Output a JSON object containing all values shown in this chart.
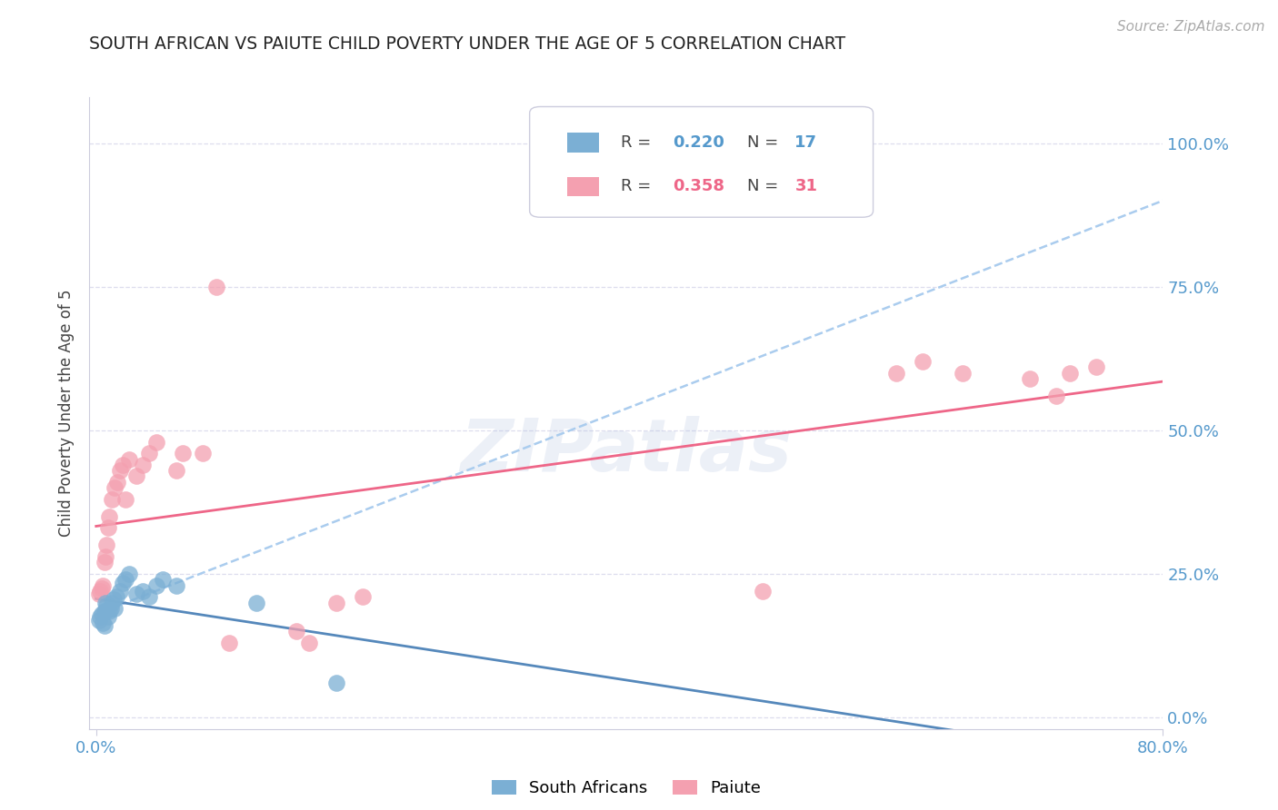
{
  "title": "SOUTH AFRICAN VS PAIUTE CHILD POVERTY UNDER THE AGE OF 5 CORRELATION CHART",
  "source": "Source: ZipAtlas.com",
  "ylabel": "Child Poverty Under the Age of 5",
  "ytick_labels": [
    "0.0%",
    "25.0%",
    "50.0%",
    "75.0%",
    "100.0%"
  ],
  "ytick_values": [
    0.0,
    0.25,
    0.5,
    0.75,
    1.0
  ],
  "xmin": -0.005,
  "xmax": 0.8,
  "ymin": -0.02,
  "ymax": 1.08,
  "watermark": "ZIPatlas",
  "south_african_x": [
    0.002,
    0.003,
    0.004,
    0.005,
    0.006,
    0.006,
    0.007,
    0.007,
    0.008,
    0.009,
    0.01,
    0.011,
    0.012,
    0.013,
    0.014,
    0.015,
    0.018,
    0.02,
    0.022,
    0.025,
    0.03,
    0.035,
    0.04,
    0.045,
    0.05,
    0.06,
    0.12,
    0.18
  ],
  "south_african_y": [
    0.17,
    0.175,
    0.18,
    0.165,
    0.16,
    0.185,
    0.185,
    0.2,
    0.195,
    0.175,
    0.185,
    0.19,
    0.2,
    0.205,
    0.19,
    0.21,
    0.22,
    0.235,
    0.24,
    0.25,
    0.215,
    0.22,
    0.21,
    0.23,
    0.24,
    0.23,
    0.2,
    0.06
  ],
  "paiute_x": [
    0.002,
    0.003,
    0.004,
    0.005,
    0.006,
    0.007,
    0.008,
    0.009,
    0.01,
    0.012,
    0.014,
    0.016,
    0.018,
    0.02,
    0.022,
    0.025,
    0.03,
    0.035,
    0.04,
    0.045,
    0.06,
    0.065,
    0.08,
    0.09,
    0.1,
    0.15,
    0.16,
    0.18,
    0.2,
    0.5,
    0.6,
    0.62,
    0.65,
    0.7,
    0.72,
    0.73,
    0.75
  ],
  "paiute_y": [
    0.215,
    0.22,
    0.225,
    0.23,
    0.27,
    0.28,
    0.3,
    0.33,
    0.35,
    0.38,
    0.4,
    0.41,
    0.43,
    0.44,
    0.38,
    0.45,
    0.42,
    0.44,
    0.46,
    0.48,
    0.43,
    0.46,
    0.46,
    0.75,
    0.13,
    0.15,
    0.13,
    0.2,
    0.21,
    0.22,
    0.6,
    0.62,
    0.6,
    0.59,
    0.56,
    0.6,
    0.61
  ],
  "blue_color": "#7BAFD4",
  "pink_color": "#F4A0B0",
  "blue_line_color": "#5588BB",
  "pink_line_color": "#EE6688",
  "dashed_line_color": "#AACCEE",
  "grid_color": "#DDDDEE",
  "title_color": "#222222",
  "axis_label_color": "#5599CC",
  "background_color": "#FFFFFF",
  "legend_box_color": "#EEEEEE",
  "watermark_color": "#AABBDD"
}
